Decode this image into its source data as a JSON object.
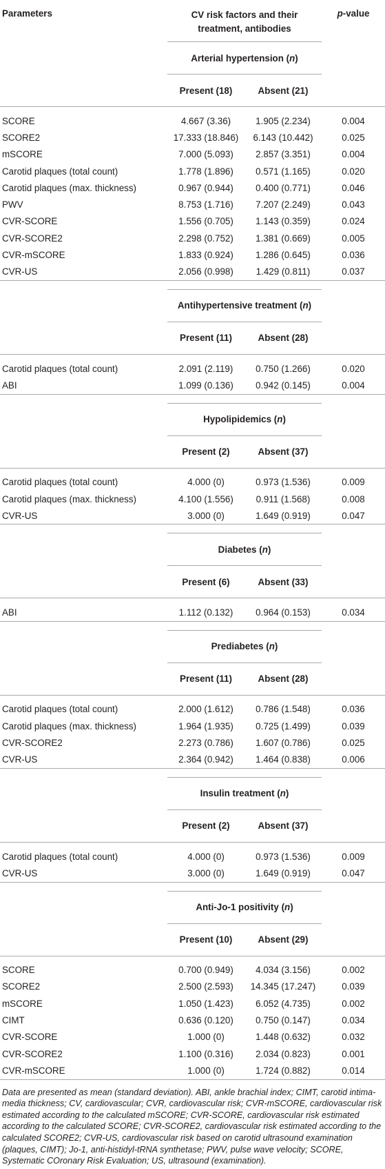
{
  "header": {
    "parameters": "Parameters",
    "title_line1": "CV risk factors and their",
    "title_line2": "treatment, antibodies",
    "pvalue_italic": "p",
    "pvalue_rest": "-value"
  },
  "groups": [
    {
      "name": "Arterial hypertension",
      "n": "n",
      "present": "Present (18)",
      "absent": "Absent (21)",
      "rows": [
        [
          "SCORE",
          "4.667 (3.36)",
          "1.905 (2.234)",
          "0.004"
        ],
        [
          "SCORE2",
          "17.333 (18.846)",
          "6.143 (10.442)",
          "0.025"
        ],
        [
          "mSCORE",
          "7.000 (5.093)",
          "2.857 (3.351)",
          "0.004"
        ],
        [
          "Carotid plaques (total count)",
          "1.778 (1.896)",
          "0.571 (1.165)",
          "0.020"
        ],
        [
          "Carotid plaques (max. thickness)",
          "0.967 (0.944)",
          "0.400 (0.771)",
          "0.046"
        ],
        [
          "PWV",
          "8.753 (1.716)",
          "7.207 (2.249)",
          "0.043"
        ],
        [
          "CVR-SCORE",
          "1.556 (0.705)",
          "1.143 (0.359)",
          "0.024"
        ],
        [
          "CVR-SCORE2",
          "2.298 (0.752)",
          "1.381 (0.669)",
          "0.005"
        ],
        [
          "CVR-mSCORE",
          "1.833 (0.924)",
          "1.286 (0.645)",
          "0.036"
        ],
        [
          "CVR-US",
          "2.056 (0.998)",
          "1.429 (0.811)",
          "0.037"
        ]
      ]
    },
    {
      "name": "Antihypertensive treatment",
      "n": "n",
      "present": "Present (11)",
      "absent": "Absent (28)",
      "rows": [
        [
          "Carotid plaques (total count)",
          "2.091 (2.119)",
          "0.750 (1.266)",
          "0.020"
        ],
        [
          "ABI",
          "1.099 (0.136)",
          "0.942 (0.145)",
          "0.004"
        ]
      ]
    },
    {
      "name": "Hypolipidemics",
      "n": "n",
      "present": "Present (2)",
      "absent": "Absent (37)",
      "rows": [
        [
          "Carotid plaques (total count)",
          "4.000 (0)",
          "0.973 (1.536)",
          "0.009"
        ],
        [
          "Carotid plaques (max. thickness)",
          "4.100 (1.556)",
          "0.911 (1.568)",
          "0.008"
        ],
        [
          "CVR-US",
          "3.000 (0)",
          "1.649 (0.919)",
          "0.047"
        ]
      ]
    },
    {
      "name": "Diabetes",
      "n": "n",
      "present": "Present (6)",
      "absent": "Absent (33)",
      "rows": [
        [
          "ABI",
          "1.112 (0.132)",
          "0.964 (0.153)",
          "0.034"
        ]
      ]
    },
    {
      "name": "Prediabetes",
      "n": "n",
      "present": "Present (11)",
      "absent": "Absent (28)",
      "rows": [
        [
          "Carotid plaques (total count)",
          "2.000 (1.612)",
          "0.786 (1.548)",
          "0.036"
        ],
        [
          "Carotid plaques (max. thickness)",
          "1.964 (1.935)",
          "0.725 (1.499)",
          "0.039"
        ],
        [
          "CVR-SCORE2",
          "2.273 (0.786)",
          "1.607 (0.786)",
          "0.025"
        ],
        [
          "CVR-US",
          "2.364 (0.942)",
          "1.464 (0.838)",
          "0.006"
        ]
      ]
    },
    {
      "name": "Insulin treatment",
      "n": "n",
      "present": "Present (2)",
      "absent": "Absent (37)",
      "rows": [
        [
          "Carotid plaques (total count)",
          "4.000 (0)",
          "0.973 (1.536)",
          "0.009"
        ],
        [
          "CVR-US",
          "3.000 (0)",
          "1.649 (0.919)",
          "0.047"
        ]
      ]
    },
    {
      "name": "Anti-Jo-1 positivity",
      "n": "n",
      "present": "Present (10)",
      "absent": "Absent (29)",
      "rows": [
        [
          "SCORE",
          "0.700 (0.949)",
          "4.034 (3.156)",
          "0.002"
        ],
        [
          "SCORE2",
          "2.500 (2.593)",
          "14.345 (17.247)",
          "0.039"
        ],
        [
          "mSCORE",
          "1.050 (1.423)",
          "6.052 (4.735)",
          "0.002"
        ],
        [
          "CIMT",
          "0.636 (0.120)",
          "0.750 (0.147)",
          "0.034"
        ],
        [
          "CVR-SCORE",
          "1.000 (0)",
          "1.448 (0.632)",
          "0.032"
        ],
        [
          "CVR-SCORE2",
          "1.100 (0.316)",
          "2.034 (0.823)",
          "0.001"
        ],
        [
          "CVR-mSCORE",
          "1.000 (0)",
          "1.724 (0.882)",
          "0.014"
        ]
      ]
    }
  ],
  "footnote": "Data are presented as mean (standard deviation). ABI, ankle brachial index; CIMT, carotid intima-media thickness; CV, cardiovascular; CVR, cardiovascular risk; CVR-mSCORE, cardiovascular risk estimated according to the calculated mSCORE; CVR-SCORE, cardiovascular risk estimated according to the calculated SCORE; CVR-SCORE2, cardiovascular risk estimated according to the calculated SCORE2; CVR-US, cardiovascular risk based on carotid ultrasound examination (plaques, CIMT); Jo-1, anti-histidyl-tRNA synthetase; PWV, pulse wave velocity; SCORE, Systematic COronary Risk Evaluation; US, ultrasound (examination)."
}
